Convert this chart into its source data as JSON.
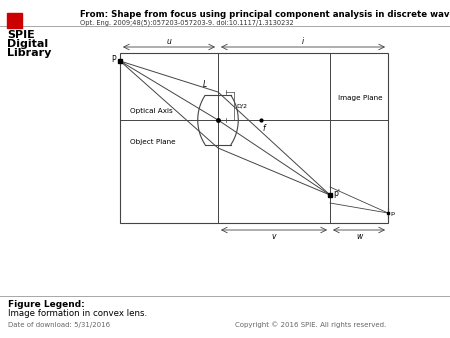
{
  "title": "From: Shape from focus using principal component analysis in discrete wavelet transform",
  "subtitle": "Opt. Eng. 2009;48(5):057203-057203-9. doi:10.1117/1.3130232",
  "figure_legend_title": "Figure Legend:",
  "figure_legend_text": "Image formation in convex lens.",
  "footer_left": "Date of download: 5/31/2016",
  "footer_right": "Copyright © 2016 SPIE. All rights reserved.",
  "bg_color": "#ffffff",
  "diagram_color": "#444444",
  "text_color": "#000000"
}
